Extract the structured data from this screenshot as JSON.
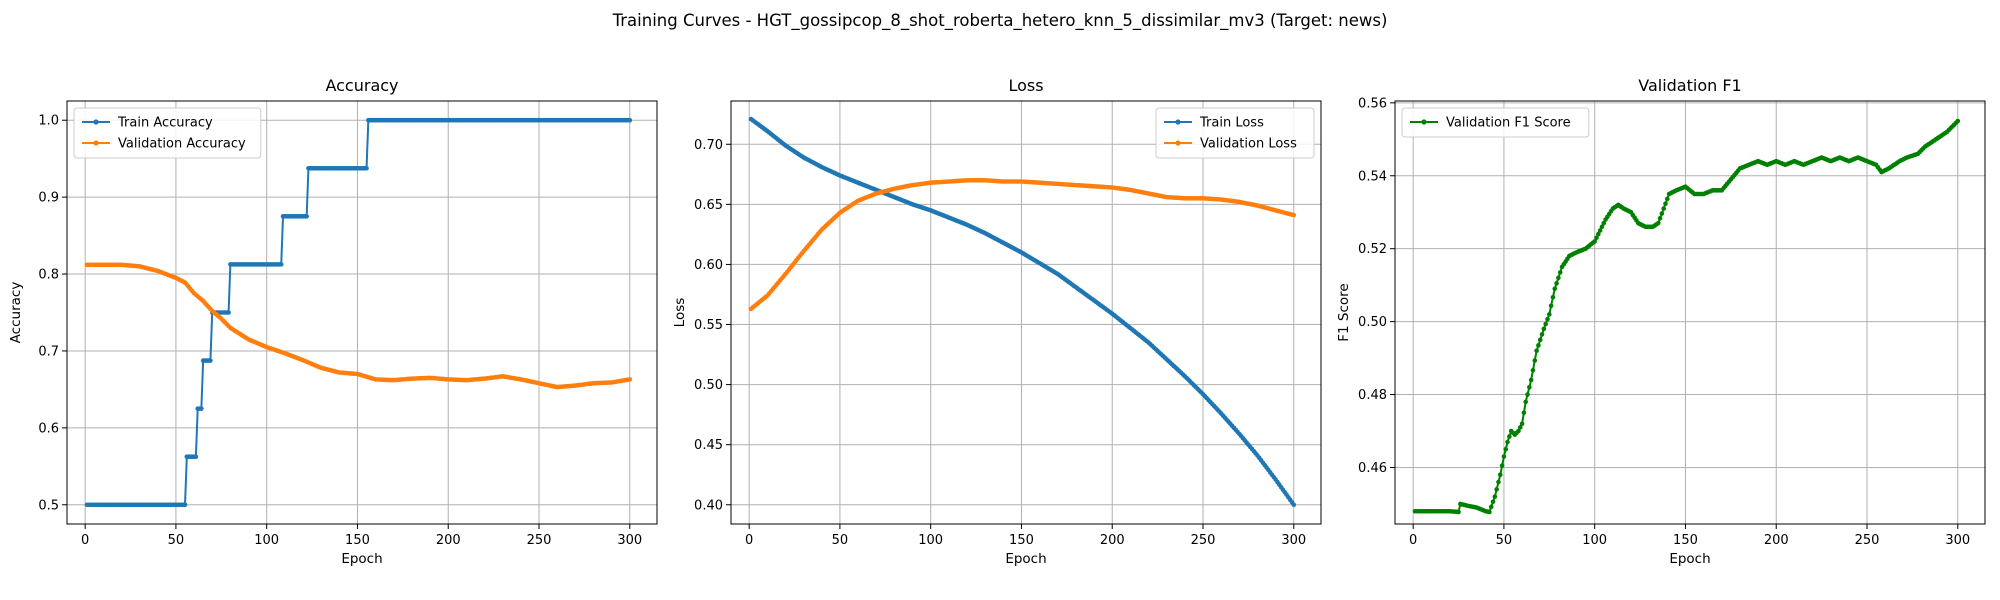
{
  "figure": {
    "suptitle": "Training Curves - HGT_gossipcop_8_shot_roberta_hetero_knn_5_dissimilar_mv3 (Target: news)"
  },
  "colors": {
    "blue": "#1f77b4",
    "orange": "#ff7f0e",
    "green": "#008000"
  },
  "chart_data": [
    {
      "type": "line",
      "title": "Accuracy",
      "xlabel": "Epoch",
      "ylabel": "Accuracy",
      "xlim": [
        -10,
        315
      ],
      "ylim": [
        0.475,
        1.025
      ],
      "xticks": [
        0,
        50,
        100,
        150,
        200,
        250,
        300
      ],
      "yticks": [
        0.5,
        0.6,
        0.7,
        0.8,
        0.9,
        1.0
      ],
      "ytick_decimals": 1,
      "grid": true,
      "legend": "top-left",
      "series": [
        {
          "name": "Train Accuracy",
          "color": "#1f77b4",
          "kind": "step",
          "points": [
            [
              1,
              0.5
            ],
            [
              55,
              0.5
            ],
            [
              56,
              0.5625
            ],
            [
              61,
              0.5625
            ],
            [
              62,
              0.625
            ],
            [
              64,
              0.625
            ],
            [
              65,
              0.6875
            ],
            [
              69,
              0.6875
            ],
            [
              70,
              0.75
            ],
            [
              79,
              0.75
            ],
            [
              80,
              0.8125
            ],
            [
              108,
              0.8125
            ],
            [
              109,
              0.875
            ],
            [
              122,
              0.875
            ],
            [
              123,
              0.9375
            ],
            [
              155,
              0.9375
            ],
            [
              156,
              1.0
            ],
            [
              300,
              1.0
            ]
          ]
        },
        {
          "name": "Validation Accuracy",
          "color": "#ff7f0e",
          "kind": "smooth",
          "points": [
            [
              1,
              0.812
            ],
            [
              20,
              0.812
            ],
            [
              30,
              0.81
            ],
            [
              40,
              0.804
            ],
            [
              50,
              0.795
            ],
            [
              55,
              0.789
            ],
            [
              60,
              0.775
            ],
            [
              65,
              0.765
            ],
            [
              70,
              0.752
            ],
            [
              75,
              0.742
            ],
            [
              80,
              0.73
            ],
            [
              90,
              0.715
            ],
            [
              100,
              0.705
            ],
            [
              110,
              0.697
            ],
            [
              120,
              0.688
            ],
            [
              130,
              0.678
            ],
            [
              140,
              0.672
            ],
            [
              150,
              0.67
            ],
            [
              160,
              0.663
            ],
            [
              170,
              0.662
            ],
            [
              180,
              0.664
            ],
            [
              190,
              0.665
            ],
            [
              200,
              0.663
            ],
            [
              210,
              0.662
            ],
            [
              220,
              0.664
            ],
            [
              230,
              0.667
            ],
            [
              240,
              0.663
            ],
            [
              250,
              0.658
            ],
            [
              260,
              0.653
            ],
            [
              270,
              0.655
            ],
            [
              280,
              0.658
            ],
            [
              290,
              0.659
            ],
            [
              300,
              0.663
            ]
          ]
        }
      ]
    },
    {
      "type": "line",
      "title": "Loss",
      "xlabel": "Epoch",
      "ylabel": "Loss",
      "xlim": [
        -10,
        315
      ],
      "ylim": [
        0.384,
        0.736
      ],
      "xticks": [
        0,
        50,
        100,
        150,
        200,
        250,
        300
      ],
      "yticks": [
        0.4,
        0.45,
        0.5,
        0.55,
        0.6,
        0.65,
        0.7
      ],
      "ytick_decimals": 2,
      "grid": true,
      "legend": "top-right",
      "series": [
        {
          "name": "Train Loss",
          "color": "#1f77b4",
          "kind": "smooth",
          "points": [
            [
              1,
              0.721
            ],
            [
              10,
              0.711
            ],
            [
              20,
              0.699
            ],
            [
              30,
              0.689
            ],
            [
              40,
              0.681
            ],
            [
              50,
              0.674
            ],
            [
              60,
              0.668
            ],
            [
              70,
              0.662
            ],
            [
              80,
              0.656
            ],
            [
              90,
              0.65
            ],
            [
              100,
              0.645
            ],
            [
              110,
              0.639
            ],
            [
              120,
              0.633
            ],
            [
              130,
              0.626
            ],
            [
              140,
              0.618
            ],
            [
              150,
              0.61
            ],
            [
              160,
              0.601
            ],
            [
              170,
              0.592
            ],
            [
              180,
              0.581
            ],
            [
              190,
              0.57
            ],
            [
              200,
              0.559
            ],
            [
              210,
              0.547
            ],
            [
              220,
              0.535
            ],
            [
              230,
              0.521
            ],
            [
              240,
              0.507
            ],
            [
              250,
              0.492
            ],
            [
              260,
              0.476
            ],
            [
              270,
              0.459
            ],
            [
              280,
              0.441
            ],
            [
              290,
              0.421
            ],
            [
              300,
              0.4
            ]
          ]
        },
        {
          "name": "Validation Loss",
          "color": "#ff7f0e",
          "kind": "smooth",
          "points": [
            [
              1,
              0.563
            ],
            [
              10,
              0.574
            ],
            [
              20,
              0.592
            ],
            [
              30,
              0.611
            ],
            [
              40,
              0.629
            ],
            [
              50,
              0.643
            ],
            [
              60,
              0.653
            ],
            [
              70,
              0.659
            ],
            [
              80,
              0.663
            ],
            [
              90,
              0.666
            ],
            [
              100,
              0.668
            ],
            [
              110,
              0.669
            ],
            [
              120,
              0.67
            ],
            [
              130,
              0.67
            ],
            [
              140,
              0.669
            ],
            [
              150,
              0.669
            ],
            [
              160,
              0.668
            ],
            [
              170,
              0.667
            ],
            [
              180,
              0.666
            ],
            [
              190,
              0.665
            ],
            [
              200,
              0.664
            ],
            [
              210,
              0.662
            ],
            [
              220,
              0.659
            ],
            [
              230,
              0.656
            ],
            [
              240,
              0.655
            ],
            [
              250,
              0.655
            ],
            [
              260,
              0.654
            ],
            [
              270,
              0.652
            ],
            [
              280,
              0.649
            ],
            [
              290,
              0.645
            ],
            [
              300,
              0.641
            ]
          ]
        }
      ]
    },
    {
      "type": "line",
      "title": "Validation F1",
      "xlabel": "Epoch",
      "ylabel": "F1 Score",
      "xlim": [
        -10,
        315
      ],
      "ylim": [
        0.4445,
        0.5605
      ],
      "xticks": [
        0,
        50,
        100,
        150,
        200,
        250,
        300
      ],
      "yticks": [
        0.46,
        0.48,
        0.5,
        0.52,
        0.54,
        0.56
      ],
      "ytick_decimals": 2,
      "grid": true,
      "legend": "top-left",
      "series": [
        {
          "name": "Validation F1 Score",
          "color": "#008000",
          "kind": "smooth",
          "points": [
            [
              1,
              0.448
            ],
            [
              10,
              0.448
            ],
            [
              20,
              0.448
            ],
            [
              25,
              0.4478
            ],
            [
              26,
              0.45
            ],
            [
              30,
              0.4495
            ],
            [
              35,
              0.449
            ],
            [
              40,
              0.448
            ],
            [
              42,
              0.4478
            ],
            [
              45,
              0.452
            ],
            [
              48,
              0.458
            ],
            [
              50,
              0.463
            ],
            [
              52,
              0.467
            ],
            [
              54,
              0.47
            ],
            [
              56,
              0.469
            ],
            [
              58,
              0.47
            ],
            [
              60,
              0.472
            ],
            [
              62,
              0.478
            ],
            [
              65,
              0.484
            ],
            [
              68,
              0.492
            ],
            [
              72,
              0.498
            ],
            [
              75,
              0.502
            ],
            [
              78,
              0.509
            ],
            [
              82,
              0.515
            ],
            [
              86,
              0.518
            ],
            [
              90,
              0.519
            ],
            [
              95,
              0.52
            ],
            [
              100,
              0.522
            ],
            [
              103,
              0.525
            ],
            [
              106,
              0.528
            ],
            [
              110,
              0.531
            ],
            [
              113,
              0.532
            ],
            [
              116,
              0.531
            ],
            [
              120,
              0.53
            ],
            [
              124,
              0.527
            ],
            [
              128,
              0.526
            ],
            [
              132,
              0.526
            ],
            [
              135,
              0.527
            ],
            [
              138,
              0.531
            ],
            [
              141,
              0.535
            ],
            [
              145,
              0.536
            ],
            [
              150,
              0.537
            ],
            [
              155,
              0.535
            ],
            [
              160,
              0.535
            ],
            [
              165,
              0.536
            ],
            [
              170,
              0.536
            ],
            [
              175,
              0.539
            ],
            [
              180,
              0.542
            ],
            [
              185,
              0.543
            ],
            [
              190,
              0.544
            ],
            [
              195,
              0.543
            ],
            [
              200,
              0.544
            ],
            [
              205,
              0.543
            ],
            [
              210,
              0.544
            ],
            [
              215,
              0.543
            ],
            [
              220,
              0.544
            ],
            [
              225,
              0.545
            ],
            [
              230,
              0.544
            ],
            [
              235,
              0.545
            ],
            [
              240,
              0.544
            ],
            [
              245,
              0.545
            ],
            [
              250,
              0.544
            ],
            [
              255,
              0.543
            ],
            [
              258,
              0.541
            ],
            [
              262,
              0.542
            ],
            [
              268,
              0.544
            ],
            [
              272,
              0.545
            ],
            [
              278,
              0.546
            ],
            [
              282,
              0.548
            ],
            [
              288,
              0.55
            ],
            [
              294,
              0.552
            ],
            [
              300,
              0.555
            ]
          ]
        }
      ]
    }
  ]
}
